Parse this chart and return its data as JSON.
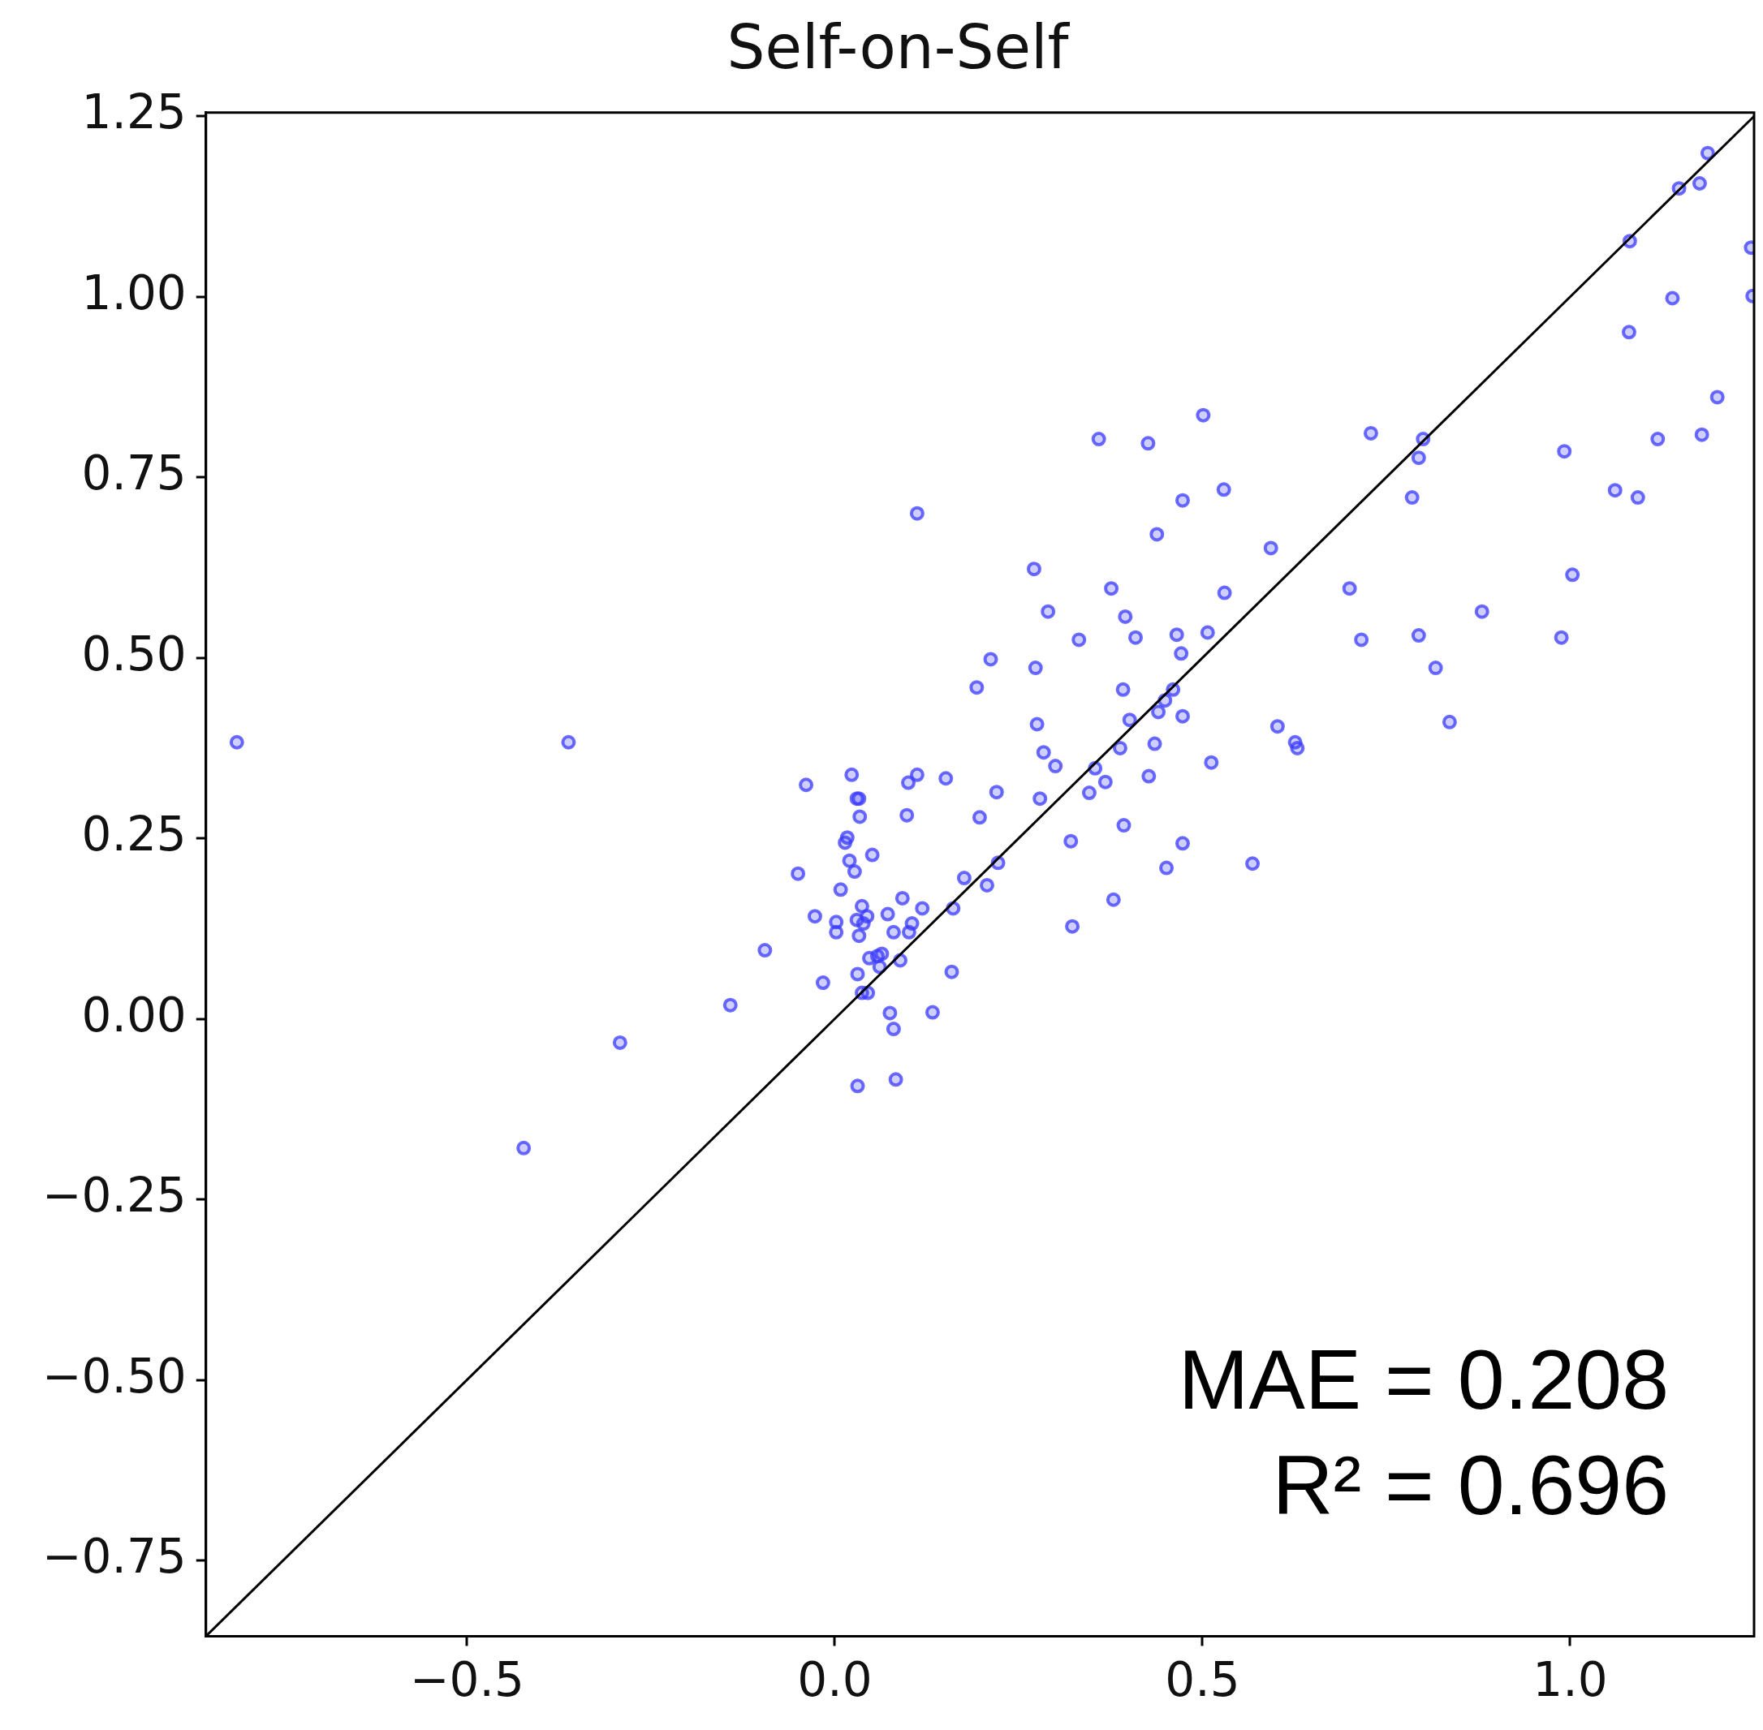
{
  "chart_data": {
    "type": "scatter",
    "title": "Self-on-Self",
    "xlim": [
      -0.855,
      1.25
    ],
    "ylim": [
      -0.855,
      1.255
    ],
    "xticks": [
      {
        "value": -0.5,
        "label": "−0.5"
      },
      {
        "value": 0,
        "label": "0.0"
      },
      {
        "value": 0.5,
        "label": "0.5"
      },
      {
        "value": 1,
        "label": "1.0"
      }
    ],
    "yticks": [
      {
        "value": -0.75,
        "label": "−0.75"
      },
      {
        "value": -0.5,
        "label": "−0.50"
      },
      {
        "value": -0.25,
        "label": "−0.25"
      },
      {
        "value": 0,
        "label": "0.00"
      },
      {
        "value": 0.25,
        "label": "0.25"
      },
      {
        "value": 0.5,
        "label": "0.50"
      },
      {
        "value": 0.75,
        "label": "0.75"
      },
      {
        "value": 1,
        "label": "1.00"
      },
      {
        "value": 1.25,
        "label": "1.25"
      }
    ],
    "grid": false,
    "legend": false,
    "marker": "circle",
    "annotations": [
      "MAE = 0.208",
      "R² = 0.696"
    ],
    "series": [
      {
        "type": "line",
        "color": "#000000",
        "marker": "none",
        "x": [
          -0.855,
          1.25
        ],
        "values": [
          -0.855,
          1.25
        ]
      },
      {
        "type": "scatter",
        "color": "#3a3aff",
        "x": [
          -0.813,
          -0.362,
          -0.423,
          -0.292,
          -0.142,
          -0.095,
          -0.05,
          -0.039,
          -0.027,
          -0.016,
          0.002,
          0.002,
          0.008,
          0.014,
          0.017,
          0.02,
          0.023,
          0.027,
          0.03,
          0.033,
          0.034,
          0.03,
          0.033,
          0.037,
          0.039,
          0.044,
          0.031,
          0.037,
          0.045,
          0.031,
          0.047,
          0.051,
          0.058,
          0.061,
          0.064,
          0.072,
          0.075,
          0.08,
          0.083,
          0.08,
          0.089,
          0.092,
          0.098,
          0.1,
          0.105,
          0.101,
          0.112,
          0.112,
          0.119,
          0.133,
          0.151,
          0.159,
          0.161,
          0.176,
          0.193,
          0.197,
          0.207,
          0.212,
          0.22,
          0.222,
          0.271,
          0.273,
          0.275,
          0.279,
          0.284,
          0.29,
          0.3,
          0.321,
          0.323,
          0.332,
          0.346,
          0.354,
          0.359,
          0.368,
          0.376,
          0.379,
          0.388,
          0.392,
          0.393,
          0.395,
          0.401,
          0.409,
          0.426,
          0.427,
          0.435,
          0.438,
          0.44,
          0.449,
          0.451,
          0.46,
          0.465,
          0.471,
          0.473,
          0.473,
          0.473,
          0.501,
          0.507,
          0.512,
          0.529,
          0.53,
          0.568,
          0.593,
          0.602,
          0.626,
          0.629,
          0.7,
          0.716,
          0.729,
          0.785,
          0.794,
          0.794,
          0.8,
          0.817,
          0.836,
          0.88,
          0.988,
          0.992,
          1.003,
          1.061,
          1.08,
          1.081,
          1.092,
          1.119,
          1.139,
          1.148,
          1.176,
          1.179,
          1.187,
          1.2,
          1.246,
          1.248
        ],
        "values": [
          0.383,
          0.383,
          -0.179,
          -0.033,
          0.019,
          0.095,
          0.201,
          0.324,
          0.142,
          0.05,
          0.134,
          0.12,
          0.179,
          0.244,
          0.251,
          0.219,
          0.338,
          0.204,
          0.305,
          0.305,
          0.28,
          0.137,
          0.115,
          0.156,
          0.132,
          0.142,
          0.062,
          0.036,
          0.036,
          -0.093,
          0.084,
          0.227,
          0.087,
          0.072,
          0.09,
          0.145,
          0.008,
          -0.014,
          -0.084,
          0.12,
          0.081,
          0.167,
          0.282,
          0.327,
          0.132,
          0.12,
          0.338,
          0.7,
          0.153,
          0.009,
          0.333,
          0.065,
          0.153,
          0.195,
          0.459,
          0.279,
          0.185,
          0.498,
          0.314,
          0.216,
          0.623,
          0.486,
          0.408,
          0.305,
          0.369,
          0.564,
          0.35,
          0.246,
          0.128,
          0.525,
          0.313,
          0.347,
          0.803,
          0.328,
          0.596,
          0.165,
          0.375,
          0.456,
          0.268,
          0.557,
          0.414,
          0.528,
          0.797,
          0.336,
          0.381,
          0.671,
          0.425,
          0.441,
          0.209,
          0.456,
          0.532,
          0.506,
          0.718,
          0.419,
          0.243,
          0.836,
          0.535,
          0.355,
          0.733,
          0.59,
          0.215,
          0.652,
          0.405,
          0.383,
          0.375,
          0.596,
          0.525,
          0.811,
          0.722,
          0.777,
          0.531,
          0.803,
          0.486,
          0.411,
          0.564,
          0.528,
          0.786,
          0.615,
          0.732,
          0.951,
          1.077,
          0.722,
          0.803,
          0.998,
          1.15,
          1.157,
          0.809,
          1.199,
          0.861,
          1.068,
          1.001
        ]
      }
    ]
  }
}
